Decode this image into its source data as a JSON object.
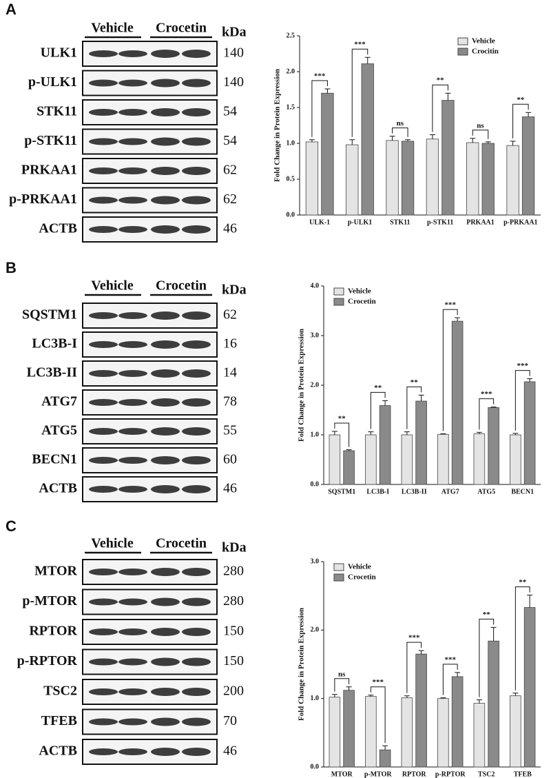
{
  "blots": [
    {
      "label": "A",
      "groups": [
        "Vehicle",
        "Crocetin"
      ],
      "unit": "kDa",
      "rows": [
        {
          "name": "ULK1",
          "kda": 140
        },
        {
          "name": "p-ULK1",
          "kda": 140
        },
        {
          "name": "STK11",
          "kda": 54
        },
        {
          "name": "p-STK11",
          "kda": 54
        },
        {
          "name": "PRKAA1",
          "kda": 62
        },
        {
          "name": "p-PRKAA1",
          "kda": 62
        },
        {
          "name": "ACTB",
          "kda": 46
        }
      ]
    },
    {
      "label": "B",
      "groups": [
        "Vehicle",
        "Crocetin"
      ],
      "unit": "kDa",
      "rows": [
        {
          "name": "SQSTM1",
          "kda": 62
        },
        {
          "name": "LC3B-I",
          "kda": 16
        },
        {
          "name": "LC3B-II",
          "kda": 14
        },
        {
          "name": "ATG7",
          "kda": 78
        },
        {
          "name": "ATG5",
          "kda": 55
        },
        {
          "name": "BECN1",
          "kda": 60
        },
        {
          "name": "ACTB",
          "kda": 46
        }
      ]
    },
    {
      "label": "C",
      "groups": [
        "Vehicle",
        "Crocetin"
      ],
      "unit": "kDa",
      "rows": [
        {
          "name": "MTOR",
          "kda": 280
        },
        {
          "name": "p-MTOR",
          "kda": 280
        },
        {
          "name": "RPTOR",
          "kda": 150
        },
        {
          "name": "p-RPTOR",
          "kda": 150
        },
        {
          "name": "TSC2",
          "kda": 200
        },
        {
          "name": "TFEB",
          "kda": 70
        },
        {
          "name": "ACTB",
          "kda": 46
        }
      ]
    }
  ],
  "chart_data": [
    {
      "type": "bar",
      "y_label": "Fold Change in Protein Expression",
      "legend": "upper right",
      "categories": [
        "ULK-1",
        "p-ULK1",
        "STK11",
        "p-STK11",
        "PRKAA1",
        "p-PRKAA1"
      ],
      "series": [
        {
          "name": "Vehicle",
          "color": "#e4e4e4",
          "values": [
            1.02,
            0.98,
            1.04,
            1.06,
            1.01,
            0.97
          ],
          "errors": [
            0.03,
            0.07,
            0.06,
            0.06,
            0.06,
            0.06
          ]
        },
        {
          "name": "Crocitin",
          "color": "#8a8a8a",
          "values": [
            1.7,
            2.11,
            1.03,
            1.6,
            1.0,
            1.37
          ],
          "errors": [
            0.06,
            0.09,
            0.02,
            0.1,
            0.02,
            0.06
          ]
        }
      ],
      "annotations": [
        "***",
        "***",
        "ns",
        "**",
        "ns",
        "**"
      ],
      "ylim": [
        0,
        2.5
      ],
      "yticks": [
        {
          "value": 0,
          "label": "0.0"
        },
        {
          "value": 0.5,
          "label": "0.5"
        },
        {
          "value": 1,
          "label": "1.0"
        },
        {
          "value": 1.5,
          "label": "1.5"
        },
        {
          "value": 2,
          "label": "2.0"
        },
        {
          "value": 2.5,
          "label": "2.5"
        }
      ]
    },
    {
      "type": "bar",
      "y_label": "Fold Change in Protein Expression",
      "legend": "upper left",
      "categories": [
        "SQSTM1",
        "LC3B-I",
        "LC3B-II",
        "ATG7",
        "ATG5",
        "BECN1"
      ],
      "series": [
        {
          "name": "Vehicle",
          "color": "#e4e4e4",
          "values": [
            1.0,
            1.0,
            1.0,
            1.01,
            1.02,
            1.0
          ],
          "errors": [
            0.07,
            0.06,
            0.06,
            0.01,
            0.03,
            0.03
          ]
        },
        {
          "name": "Crocetin",
          "color": "#8a8a8a",
          "values": [
            0.68,
            1.59,
            1.68,
            3.29,
            1.55,
            2.07
          ],
          "errors": [
            0.02,
            0.1,
            0.12,
            0.07,
            0.01,
            0.06
          ]
        }
      ],
      "annotations": [
        "**",
        "**",
        "**",
        "***",
        "***",
        "***"
      ],
      "ylim": [
        0,
        4
      ],
      "yticks": [
        {
          "value": 0,
          "label": "0.0"
        },
        {
          "value": 1,
          "label": "1.0"
        },
        {
          "value": 2,
          "label": "2.0"
        },
        {
          "value": 3,
          "label": "3.0"
        },
        {
          "value": 4,
          "label": "4.0"
        }
      ]
    },
    {
      "type": "bar",
      "y_label": "Fold Change in Protein Expression",
      "legend": "upper left",
      "categories": [
        "MTOR",
        "p-MTOR",
        "RPTOR",
        "p-RPTOR",
        "TSC2",
        "TFEB"
      ],
      "series": [
        {
          "name": "Vehicle",
          "color": "#e4e4e4",
          "values": [
            1.02,
            1.03,
            1.01,
            1.0,
            0.93,
            1.04
          ],
          "errors": [
            0.04,
            0.02,
            0.03,
            0.01,
            0.05,
            0.04
          ]
        },
        {
          "name": "Crocetin",
          "color": "#8a8a8a",
          "values": [
            1.12,
            0.25,
            1.65,
            1.32,
            1.84,
            2.33
          ],
          "errors": [
            0.05,
            0.06,
            0.05,
            0.06,
            0.2,
            0.18
          ]
        }
      ],
      "annotations": [
        "ns",
        "***",
        "***",
        "***",
        "**",
        "**"
      ],
      "ylim": [
        0,
        3
      ],
      "yticks": [
        {
          "value": 0,
          "label": "0.0"
        },
        {
          "value": 1,
          "label": "1.0"
        },
        {
          "value": 2,
          "label": "2.0"
        },
        {
          "value": 3,
          "label": "3.0"
        }
      ]
    }
  ]
}
